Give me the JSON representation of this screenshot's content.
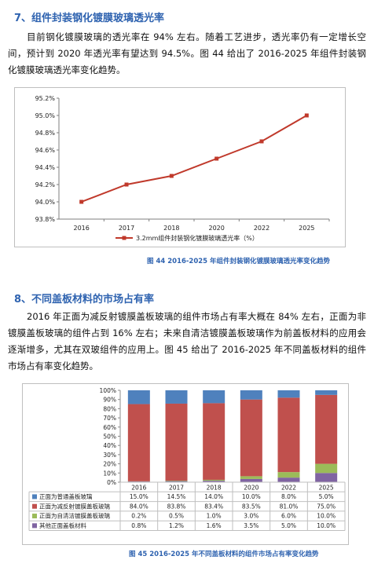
{
  "section7": {
    "title": "7、组件封装钢化镀膜玻璃透光率",
    "paragraph": "目前钢化镀膜玻璃的透光率在 94% 左右。随着工艺进步，透光率仍有一定增长空间，预计到 2020 年透光率有望达到 94.5%。图 44 给出了 2016-2025 年组件封装钢化镀膜玻璃透光率变化趋势。",
    "caption": "图 44 2016-2025 年组件封装钢化镀膜玻璃透光率变化趋势"
  },
  "section8": {
    "title": "8、不同盖板材料的市场占有率",
    "paragraph": "2016 年正面为减反射镀膜盖板玻璃的组件市场占有率大概在 84% 左右，正面为非镀膜盖板玻璃的组件占到 16% 左右；未来自清洁镀膜盖板玻璃作为前盖板材料的应用会逐渐增多，尤其在双玻组件的应用上。图 45 给出了 2016-2025 年不同盖板材料的组件市场占有率变化趋势。",
    "caption": "图 45 2016-2025 年不同盖板材料的组件市场占有率变化趋势"
  },
  "chart_data": [
    {
      "type": "line",
      "x": [
        "2016",
        "2017",
        "2018",
        "2020",
        "2022",
        "2025"
      ],
      "series": [
        {
          "name": "3.2mm组件封装钢化镀膜玻璃透光率（%）",
          "values": [
            94.0,
            94.2,
            94.3,
            94.5,
            94.7,
            95.0
          ],
          "color": "#c0392b"
        }
      ],
      "ylim": [
        93.8,
        95.2
      ],
      "yticks": [
        "93.8%",
        "94.0%",
        "94.2%",
        "94.4%",
        "94.6%",
        "94.8%",
        "95.0%",
        "95.2%"
      ],
      "grid": false,
      "legend": "bottom"
    },
    {
      "type": "bar",
      "stacked": true,
      "categories": [
        "2016",
        "2017",
        "2018",
        "2020",
        "2022",
        "2025"
      ],
      "series": [
        {
          "name": "正面为普通盖板玻璃",
          "values": [
            15.0,
            14.5,
            14.0,
            10.0,
            8.0,
            5.0
          ],
          "labels": [
            "15.0%",
            "14.5%",
            "14.0%",
            "10.0%",
            "8.0%",
            "5.0%"
          ],
          "color": "#4f81bd"
        },
        {
          "name": "正面为减反射镀膜盖板玻璃",
          "values": [
            84.0,
            83.8,
            83.4,
            83.5,
            81.0,
            75.0
          ],
          "labels": [
            "84.0%",
            "83.8%",
            "83.4%",
            "83.5%",
            "81.0%",
            "75.0%"
          ],
          "color": "#c0504d"
        },
        {
          "name": "正面为自清洁镀膜盖板玻璃",
          "values": [
            0.2,
            0.5,
            1.0,
            3.0,
            6.0,
            10.0
          ],
          "labels": [
            "0.2%",
            "0.5%",
            "1.0%",
            "3.0%",
            "6.0%",
            "10.0%"
          ],
          "color": "#9bbb59"
        },
        {
          "name": "其他正面盖板材料",
          "values": [
            0.8,
            1.2,
            1.6,
            3.5,
            5.0,
            10.0
          ],
          "labels": [
            "0.8%",
            "1.2%",
            "1.6%",
            "3.5%",
            "5.0%",
            "10.0%"
          ],
          "color": "#8064a2"
        }
      ],
      "ylim": [
        0,
        100
      ],
      "yticks": [
        "0%",
        "10%",
        "20%",
        "30%",
        "40%",
        "50%",
        "60%",
        "70%",
        "80%",
        "90%",
        "100%"
      ],
      "legend": "data-table"
    }
  ]
}
